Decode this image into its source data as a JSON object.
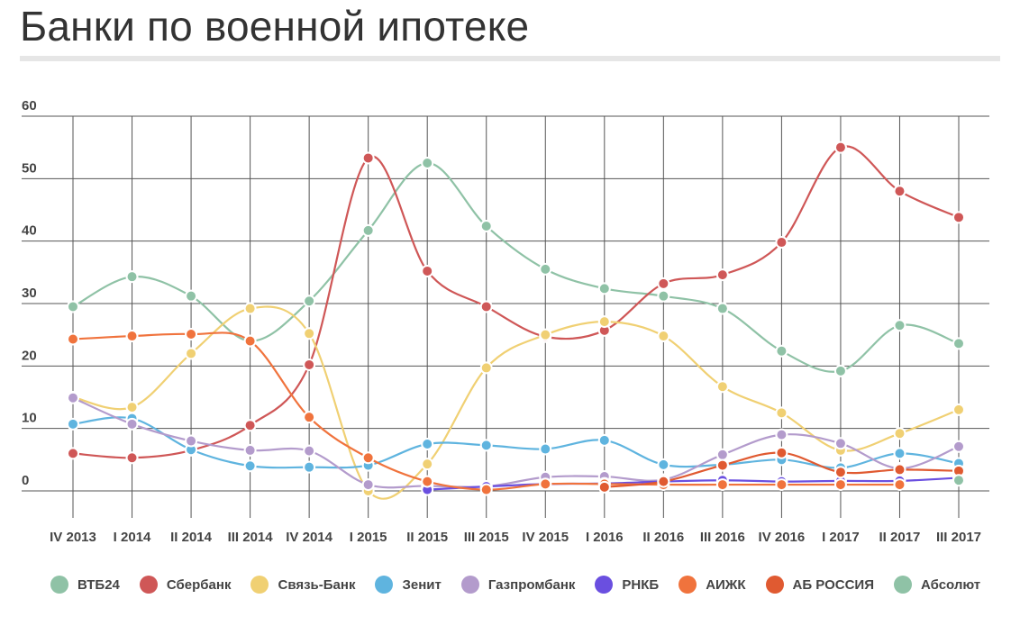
{
  "title": "Банки по военной ипотеке",
  "chart_data": {
    "type": "line",
    "categories": [
      "IV 2013",
      "I 2014",
      "II 2014",
      "III 2014",
      "IV 2014",
      "I 2015",
      "II 2015",
      "III 2015",
      "IV 2015",
      "I 2016",
      "II 2016",
      "III 2016",
      "IV 2016",
      "I 2017",
      "II 2017",
      "III 2017"
    ],
    "y_ticks": [
      "0",
      "10",
      "20",
      "30",
      "40",
      "50",
      "60"
    ],
    "ylim": [
      0,
      60
    ],
    "grid": true,
    "legend_position": "bottom",
    "series": [
      {
        "name": "ВТБ24",
        "color": "#8fc2a6",
        "values": [
          29.5,
          34.3,
          31.2,
          24,
          30.4,
          41.7,
          52.5,
          42.4,
          35.5,
          32.4,
          31.2,
          29.2,
          22.4,
          19.2,
          26.5,
          23.6
        ]
      },
      {
        "name": "Сбербанк",
        "color": "#cf5757",
        "values": [
          6,
          5.3,
          6.5,
          10.5,
          20.2,
          53.3,
          35.2,
          29.5,
          24.7,
          25.7,
          33.2,
          34.6,
          39.8,
          55,
          48,
          43.8
        ]
      },
      {
        "name": "Связь-Банк",
        "color": "#f0d073",
        "values": [
          15,
          13.4,
          22,
          29.2,
          25.2,
          0,
          4.3,
          19.7,
          25,
          27.1,
          24.8,
          16.7,
          12.5,
          6.5,
          9.2,
          13
        ]
      },
      {
        "name": "Зенит",
        "color": "#5fb4df",
        "values": [
          10.7,
          11.6,
          6.6,
          4,
          3.8,
          4.1,
          7.5,
          7.3,
          6.7,
          8.1,
          4.2,
          4.2,
          5,
          3.7,
          6,
          4.4
        ]
      },
      {
        "name": "Газпромбанк",
        "color": "#b39bcc",
        "values": [
          14.9,
          10.7,
          8,
          6.5,
          6.4,
          1,
          0.8,
          0.7,
          2.2,
          2.3,
          1.8,
          5.8,
          9,
          7.6,
          3.6,
          7.1
        ]
      },
      {
        "name": "РНКБ",
        "color": "#6a4fe0",
        "values": [
          null,
          null,
          null,
          null,
          null,
          null,
          0.2,
          0.7,
          1.1,
          1.2,
          1.5,
          1.7,
          1.5,
          1.6,
          1.6,
          2.1
        ]
      },
      {
        "name": "АИЖК",
        "color": "#f0733d",
        "values": [
          24.3,
          24.8,
          25.1,
          24,
          11.8,
          5.3,
          1.5,
          0.2,
          1.1,
          1.1,
          1,
          1,
          1,
          1,
          1,
          null
        ]
      },
      {
        "name": "АБ РОССИЯ",
        "color": "#e05a31",
        "values": [
          null,
          null,
          null,
          null,
          null,
          null,
          null,
          null,
          null,
          0.6,
          1.5,
          4.1,
          6.1,
          3,
          3.4,
          3.2
        ]
      },
      {
        "name": "Абсолют",
        "color": "#8fc2a6",
        "values": [
          null,
          null,
          null,
          null,
          null,
          null,
          null,
          null,
          null,
          null,
          null,
          null,
          null,
          null,
          null,
          1.7
        ]
      }
    ]
  }
}
